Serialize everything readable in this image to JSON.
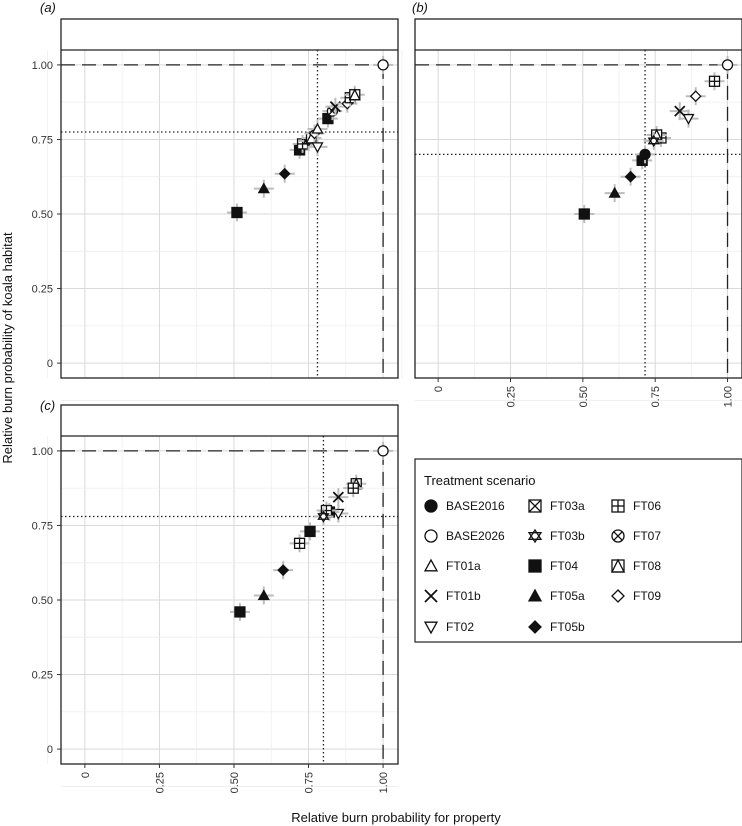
{
  "figure": {
    "xlabel": "Relative burn probability for property",
    "ylabel": "Relative burn probability of koala habitat"
  },
  "legend": {
    "title": "Treatment scenario",
    "items": [
      {
        "name": "BASE2016",
        "shape": "filled-circle"
      },
      {
        "name": "FT03a",
        "shape": "square-x"
      },
      {
        "name": "FT06",
        "shape": "square-plus"
      },
      {
        "name": "BASE2026",
        "shape": "open-circle"
      },
      {
        "name": "FT03b",
        "shape": "star-of-david"
      },
      {
        "name": "FT07",
        "shape": "circle-x"
      },
      {
        "name": "FT01a",
        "shape": "open-triangle"
      },
      {
        "name": "FT04",
        "shape": "filled-square"
      },
      {
        "name": "FT08",
        "shape": "square-triangle"
      },
      {
        "name": "FT01b",
        "shape": "cross"
      },
      {
        "name": "FT05a",
        "shape": "filled-triangle"
      },
      {
        "name": "FT09",
        "shape": "open-diamond"
      },
      {
        "name": "FT02",
        "shape": "down-triangle"
      },
      {
        "name": "FT05b",
        "shape": "filled-diamond"
      }
    ]
  },
  "chart_data": [
    {
      "panel": "(a)",
      "type": "scatter",
      "xlim": [
        -0.08,
        1.05
      ],
      "ylim": [
        -0.05,
        1.05
      ],
      "x_ticks": [
        "0",
        "0.25",
        "0.50",
        "0.75",
        "1.00"
      ],
      "y_ticks": [
        "0",
        "0.25",
        "0.50",
        "0.75",
        "1.00"
      ],
      "show_x_ticks": false,
      "show_y_ticks": true,
      "grid": true,
      "ref_lines": {
        "dotted_x": 0.78,
        "dotted_y": 0.775,
        "dashed_x": 1.0,
        "dashed_y": 1.0
      },
      "points": [
        {
          "series": "BASE2026",
          "x": 1.0,
          "y": 1.0
        },
        {
          "series": "FT04",
          "x": 0.51,
          "y": 0.505
        },
        {
          "series": "FT05a",
          "x": 0.6,
          "y": 0.585
        },
        {
          "series": "FT05b",
          "x": 0.67,
          "y": 0.635
        },
        {
          "series": "FT04",
          "x": 0.72,
          "y": 0.715
        },
        {
          "series": "FT06",
          "x": 0.73,
          "y": 0.735
        },
        {
          "series": "FT03b",
          "x": 0.75,
          "y": 0.745
        },
        {
          "series": "FT08",
          "x": 0.76,
          "y": 0.755
        },
        {
          "series": "FT09",
          "x": 0.77,
          "y": 0.77
        },
        {
          "series": "FT01a",
          "x": 0.78,
          "y": 0.785
        },
        {
          "series": "FT02",
          "x": 0.78,
          "y": 0.725
        },
        {
          "series": "FT04",
          "x": 0.815,
          "y": 0.82
        },
        {
          "series": "FT07",
          "x": 0.83,
          "y": 0.845
        },
        {
          "series": "FT01b",
          "x": 0.84,
          "y": 0.86
        },
        {
          "series": "FT09",
          "x": 0.88,
          "y": 0.87
        },
        {
          "series": "FT06",
          "x": 0.89,
          "y": 0.89
        },
        {
          "series": "FT08",
          "x": 0.905,
          "y": 0.9
        }
      ]
    },
    {
      "panel": "(b)",
      "type": "scatter",
      "xlim": [
        -0.08,
        1.05
      ],
      "ylim": [
        -0.05,
        1.05
      ],
      "x_ticks": [
        "0",
        "0.25",
        "0.50",
        "0.75",
        "1.00"
      ],
      "y_ticks": [
        "0",
        "0.25",
        "0.50",
        "0.75",
        "1.00"
      ],
      "show_x_ticks": true,
      "show_y_ticks": false,
      "grid": true,
      "ref_lines": {
        "dotted_x": 0.715,
        "dotted_y": 0.7,
        "dashed_x": 1.0,
        "dashed_y": 1.0
      },
      "points": [
        {
          "series": "BASE2026",
          "x": 1.0,
          "y": 1.0
        },
        {
          "series": "FT06",
          "x": 0.955,
          "y": 0.945
        },
        {
          "series": "FT09",
          "x": 0.89,
          "y": 0.895
        },
        {
          "series": "FT02",
          "x": 0.865,
          "y": 0.82
        },
        {
          "series": "FT01b",
          "x": 0.835,
          "y": 0.845
        },
        {
          "series": "FT06",
          "x": 0.77,
          "y": 0.755
        },
        {
          "series": "FT08",
          "x": 0.755,
          "y": 0.765
        },
        {
          "series": "FT03b",
          "x": 0.745,
          "y": 0.745
        },
        {
          "series": "FT04",
          "x": 0.705,
          "y": 0.68
        },
        {
          "series": "BASE2016",
          "x": 0.715,
          "y": 0.7
        },
        {
          "series": "FT05b",
          "x": 0.665,
          "y": 0.625
        },
        {
          "series": "FT05a",
          "x": 0.61,
          "y": 0.57
        },
        {
          "series": "FT04",
          "x": 0.505,
          "y": 0.5
        }
      ]
    },
    {
      "panel": "(c)",
      "type": "scatter",
      "xlim": [
        -0.08,
        1.05
      ],
      "ylim": [
        -0.05,
        1.05
      ],
      "x_ticks": [
        "0",
        "0.25",
        "0.50",
        "0.75",
        "1.00"
      ],
      "y_ticks": [
        "0",
        "0.25",
        "0.50",
        "0.75",
        "1.00"
      ],
      "show_x_ticks": true,
      "show_y_ticks": true,
      "grid": true,
      "ref_lines": {
        "dotted_x": 0.8,
        "dotted_y": 0.78,
        "dashed_x": 1.0,
        "dashed_y": 1.0
      },
      "points": [
        {
          "series": "BASE2026",
          "x": 1.0,
          "y": 1.0
        },
        {
          "series": "FT08",
          "x": 0.91,
          "y": 0.89
        },
        {
          "series": "FT06",
          "x": 0.9,
          "y": 0.875
        },
        {
          "series": "FT01b",
          "x": 0.85,
          "y": 0.845
        },
        {
          "series": "FT02",
          "x": 0.85,
          "y": 0.79
        },
        {
          "series": "FT04",
          "x": 0.82,
          "y": 0.795
        },
        {
          "series": "FT06",
          "x": 0.81,
          "y": 0.8
        },
        {
          "series": "FT03b",
          "x": 0.8,
          "y": 0.78
        },
        {
          "series": "FT04",
          "x": 0.755,
          "y": 0.73
        },
        {
          "series": "FT06",
          "x": 0.72,
          "y": 0.69
        },
        {
          "series": "FT05b",
          "x": 0.665,
          "y": 0.6
        },
        {
          "series": "FT05a",
          "x": 0.6,
          "y": 0.515
        },
        {
          "series": "FT04",
          "x": 0.52,
          "y": 0.46
        }
      ]
    }
  ]
}
